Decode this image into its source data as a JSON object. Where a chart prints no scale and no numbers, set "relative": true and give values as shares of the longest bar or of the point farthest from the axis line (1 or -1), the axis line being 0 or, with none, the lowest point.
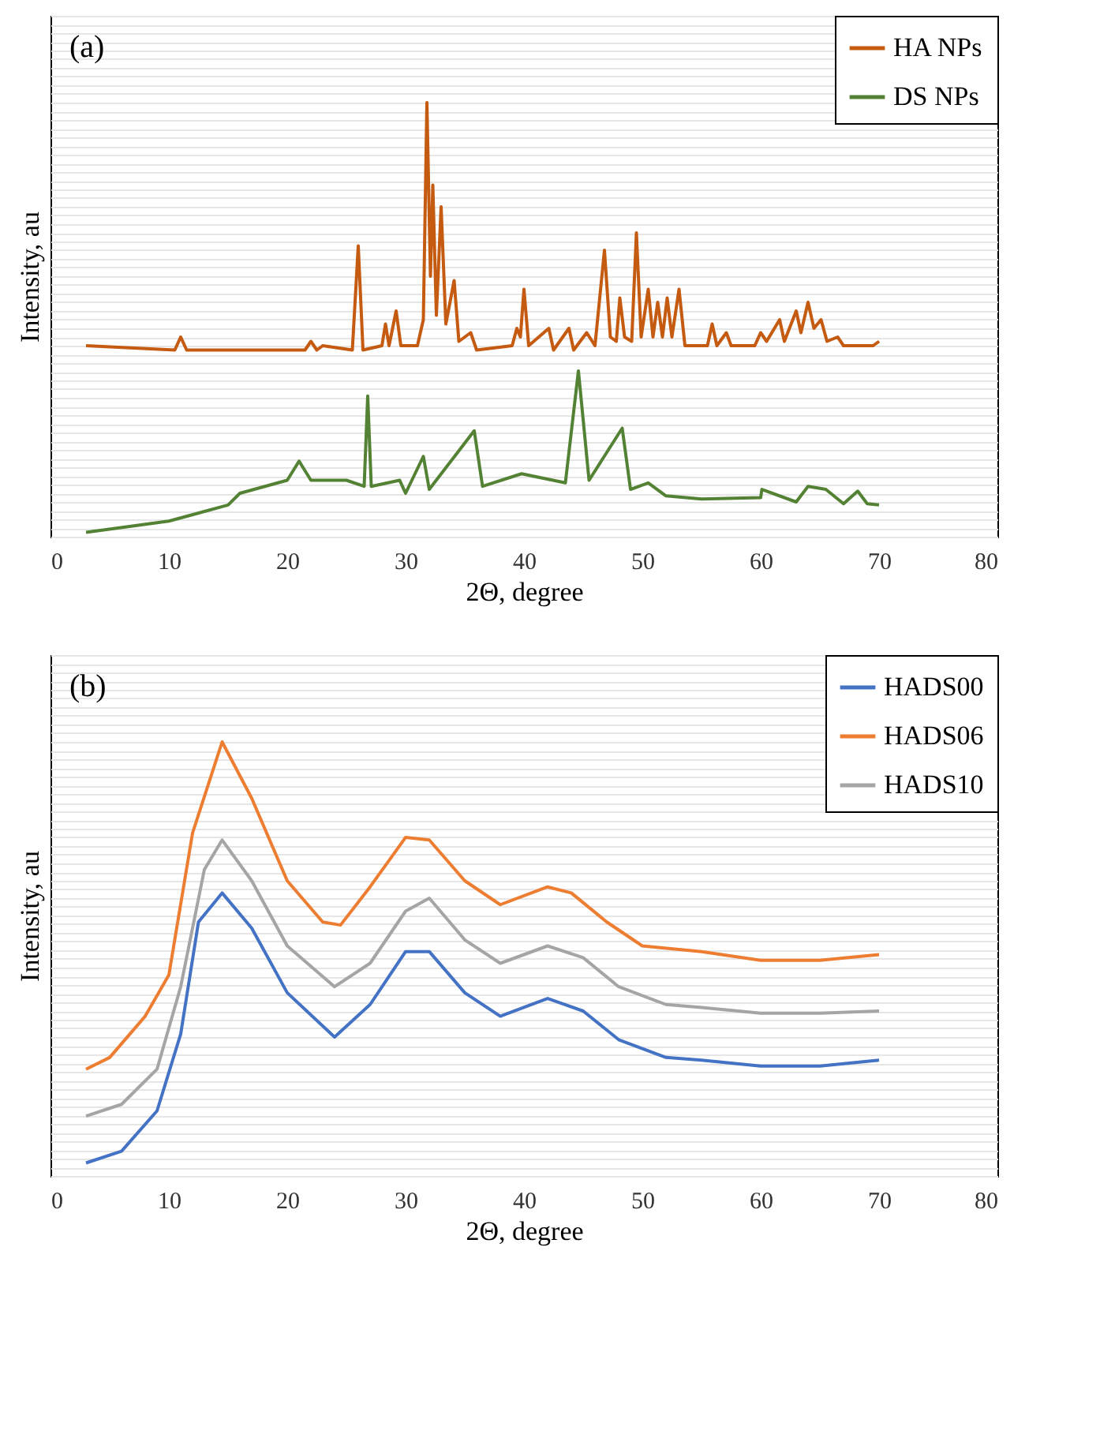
{
  "chart_data": [
    {
      "type": "line",
      "relative": true,
      "xlabel": "2Θ, degree",
      "ylabel": "Intensity, au",
      "xlim": [
        0,
        80
      ],
      "xticks": [
        0,
        10,
        20,
        30,
        40,
        50,
        60,
        70,
        80
      ],
      "grid": "y",
      "legend": "top right",
      "annotations": [
        "(a)"
      ],
      "series": [
        {
          "name": "HA NPs",
          "color": "#c55a11",
          "x": [
            3,
            10.5,
            11,
            11.5,
            17,
            20,
            21.5,
            22,
            22.5,
            23,
            25.5,
            26,
            26.4,
            28,
            28.3,
            28.6,
            29.2,
            29.6,
            31,
            31.5,
            31.8,
            32.1,
            32.3,
            32.6,
            33.0,
            33.4,
            34.1,
            34.5,
            35.5,
            36,
            39,
            39.4,
            39.7,
            40,
            40.4,
            42.1,
            42.5,
            43.8,
            44.2,
            45.3,
            46,
            46.8,
            47.3,
            47.8,
            48.1,
            48.5,
            49.1,
            49.5,
            49.9,
            50.5,
            50.9,
            51.3,
            51.7,
            52.1,
            52.5,
            53.1,
            53.6,
            55.5,
            55.9,
            56.3,
            57.1,
            57.5,
            59.5,
            60,
            60.5,
            61.6,
            62,
            63,
            63.4,
            64,
            64.5,
            65.1,
            65.6,
            66.5,
            67,
            69.5,
            70
          ],
          "values": [
            0.44,
            0.43,
            0.46,
            0.43,
            0.43,
            0.43,
            0.43,
            0.45,
            0.43,
            0.44,
            0.43,
            0.67,
            0.43,
            0.44,
            0.49,
            0.44,
            0.52,
            0.44,
            0.44,
            0.5,
            1.0,
            0.6,
            0.81,
            0.51,
            0.76,
            0.49,
            0.59,
            0.45,
            0.47,
            0.43,
            0.44,
            0.48,
            0.46,
            0.57,
            0.44,
            0.48,
            0.43,
            0.48,
            0.43,
            0.47,
            0.44,
            0.66,
            0.46,
            0.45,
            0.55,
            0.46,
            0.45,
            0.7,
            0.46,
            0.57,
            0.46,
            0.54,
            0.46,
            0.55,
            0.46,
            0.57,
            0.44,
            0.44,
            0.49,
            0.44,
            0.47,
            0.44,
            0.44,
            0.47,
            0.45,
            0.5,
            0.45,
            0.52,
            0.47,
            0.54,
            0.48,
            0.5,
            0.45,
            0.46,
            0.44,
            0.44,
            0.45
          ]
        },
        {
          "name": "DS NPs",
          "color": "#548235",
          "x": [
            3,
            10,
            15,
            16,
            20,
            21,
            22,
            25,
            26.5,
            26.8,
            27.1,
            29.5,
            30,
            31.5,
            32,
            35.8,
            36.5,
            39.8,
            43.5,
            44.6,
            45.5,
            48.3,
            49,
            50.5,
            52,
            55,
            60,
            60.1,
            63,
            64,
            65.5,
            67,
            68.2,
            69,
            70
          ],
          "values": [
            0.01,
            0.036,
            0.073,
            0.1,
            0.13,
            0.174,
            0.13,
            0.13,
            0.116,
            0.324,
            0.116,
            0.13,
            0.1,
            0.185,
            0.109,
            0.244,
            0.116,
            0.145,
            0.124,
            0.382,
            0.13,
            0.25,
            0.109,
            0.124,
            0.094,
            0.087,
            0.09,
            0.109,
            0.08,
            0.116,
            0.109,
            0.076,
            0.105,
            0.076,
            0.073
          ]
        }
      ]
    },
    {
      "type": "line",
      "relative": true,
      "xlabel": "2Θ, degree",
      "ylabel": "Intensity, au",
      "xlim": [
        0,
        80
      ],
      "xticks": [
        0,
        10,
        20,
        30,
        40,
        50,
        60,
        70,
        80
      ],
      "grid": "y",
      "legend": "top right",
      "annotations": [
        "(b)"
      ],
      "series": [
        {
          "name": "HADS00",
          "color": "#4472c4",
          "x": [
            3,
            6,
            9,
            11,
            12.5,
            14.5,
            17,
            20,
            24,
            27,
            30,
            32,
            35,
            38,
            42,
            45,
            48,
            52,
            55,
            60,
            65,
            70
          ],
          "values": [
            0.03,
            0.057,
            0.15,
            0.327,
            0.585,
            0.652,
            0.571,
            0.422,
            0.32,
            0.395,
            0.517,
            0.517,
            0.422,
            0.368,
            0.409,
            0.38,
            0.314,
            0.273,
            0.267,
            0.253,
            0.253,
            0.267
          ]
        },
        {
          "name": "HADS06",
          "color": "#ed7d31",
          "x": [
            3,
            5,
            8,
            10,
            12,
            14.5,
            17,
            20,
            23,
            24.5,
            27,
            30,
            32,
            35,
            38,
            42,
            44,
            47,
            50,
            55,
            60,
            65,
            70
          ],
          "values": [
            0.246,
            0.273,
            0.368,
            0.463,
            0.79,
            1.0,
            0.87,
            0.68,
            0.585,
            0.578,
            0.666,
            0.78,
            0.774,
            0.68,
            0.625,
            0.666,
            0.652,
            0.585,
            0.53,
            0.517,
            0.497,
            0.497,
            0.51
          ]
        },
        {
          "name": "HADS10",
          "color": "#a5a5a5",
          "x": [
            3,
            6,
            9,
            11,
            13,
            14.5,
            17,
            20,
            24,
            27,
            30,
            32,
            35,
            38,
            42,
            45,
            48,
            52,
            55,
            60,
            65,
            70
          ],
          "values": [
            0.138,
            0.165,
            0.246,
            0.436,
            0.706,
            0.774,
            0.68,
            0.53,
            0.436,
            0.49,
            0.61,
            0.64,
            0.544,
            0.49,
            0.53,
            0.503,
            0.436,
            0.395,
            0.388,
            0.375,
            0.375,
            0.38
          ]
        }
      ]
    }
  ]
}
